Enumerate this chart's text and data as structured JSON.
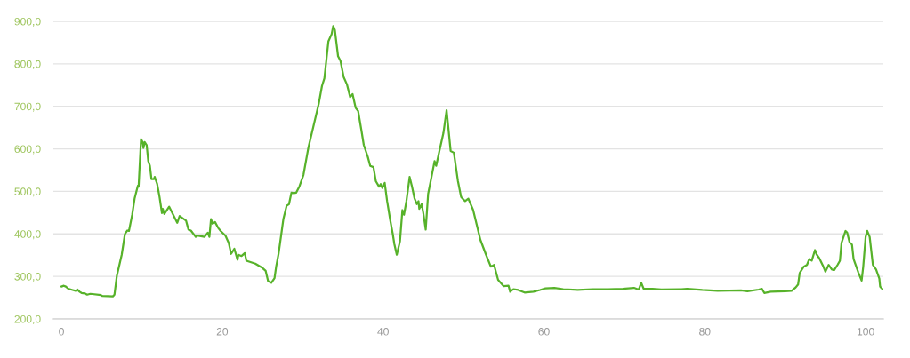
{
  "chart_data": {
    "type": "line",
    "x": [
      0,
      0.3,
      0.55,
      0.85,
      1.4,
      1.77,
      2.0,
      2.25,
      2.5,
      2.9,
      3.2,
      3.6,
      4.9,
      5.1,
      6.4,
      6.6,
      6.9,
      7.5,
      7.9,
      8.2,
      8.4,
      8.8,
      9.1,
      9.5,
      9.6,
      9.9,
      10.1,
      10.2,
      10.35,
      10.6,
      10.8,
      11.0,
      11.2,
      11.5,
      11.6,
      11.9,
      12.2,
      12.5,
      12.6,
      12.8,
      13.4,
      13.9,
      14.4,
      14.7,
      15.0,
      15.5,
      15.8,
      16.1,
      16.7,
      16.9,
      17.8,
      18.2,
      18.4,
      18.6,
      18.8,
      19.1,
      19.5,
      19.8,
      20.4,
      20.8,
      21.1,
      21.5,
      21.9,
      22.0,
      22.4,
      22.8,
      23.0,
      24.1,
      25.0,
      25.4,
      25.7,
      26.1,
      26.5,
      26.7,
      27.0,
      27.6,
      28.0,
      28.3,
      28.6,
      28.9,
      29.2,
      29.6,
      30.1,
      30.7,
      31.4,
      32.0,
      32.4,
      32.7,
      33.2,
      33.6,
      33.8,
      34.0,
      34.4,
      34.7,
      35.1,
      35.5,
      35.9,
      36.2,
      36.6,
      36.9,
      37.3,
      37.6,
      38.1,
      38.4,
      38.8,
      39.1,
      39.5,
      39.7,
      39.9,
      40.2,
      40.5,
      40.9,
      41.2,
      41.4,
      41.7,
      42.1,
      42.4,
      42.6,
      42.9,
      43.3,
      43.6,
      43.9,
      44.2,
      44.4,
      44.5,
      44.8,
      45.0,
      45.3,
      45.6,
      46.0,
      46.4,
      46.6,
      47.0,
      47.5,
      47.9,
      48.4,
      48.8,
      49.3,
      49.7,
      50.2,
      50.6,
      51.2,
      52.1,
      52.8,
      53.4,
      53.8,
      54.3,
      55.0,
      55.6,
      55.8,
      56.2,
      56.8,
      57.6,
      58.7,
      59.5,
      60.2,
      61.3,
      62.4,
      64.2,
      66.1,
      68.0,
      69.8,
      71.2,
      71.8,
      72.1,
      72.4,
      73.5,
      74.6,
      77.1,
      77.8,
      79.7,
      81.6,
      84.5,
      85.3,
      86.7,
      87.1,
      87.4,
      88.2,
      90.0,
      90.8,
      91.3,
      91.6,
      91.8,
      92.3,
      92.7,
      93.0,
      93.3,
      93.7,
      93.9,
      94.2,
      94.7,
      95.0,
      95.4,
      95.8,
      96.1,
      96.5,
      96.8,
      97.0,
      97.5,
      97.7,
      98.0,
      98.3,
      98.5,
      99.1,
      99.5,
      99.7,
      100.0,
      100.2,
      100.5,
      100.9,
      101.3,
      101.7,
      101.8,
      102.1
    ],
    "series": [
      {
        "color": "#57b22a",
        "values": [
          276,
          278,
          276,
          271,
          268,
          266,
          269,
          264,
          261,
          260,
          257,
          259,
          256,
          254,
          253,
          257,
          302,
          351,
          400,
          408,
          407,
          445,
          483,
          513,
          511,
          623,
          616,
          602,
          616,
          609,
          571,
          560,
          529,
          529,
          534,
          518,
          487,
          449,
          459,
          447,
          464,
          445,
          426,
          442,
          438,
          431,
          410,
          408,
          393,
          396,
          393,
          403,
          393,
          435,
          424,
          428,
          414,
          407,
          396,
          379,
          353,
          365,
          339,
          351,
          348,
          355,
          337,
          330,
          320,
          313,
          289,
          285,
          296,
          323,
          353,
          435,
          466,
          470,
          497,
          496,
          497,
          512,
          539,
          602,
          658,
          706,
          748,
          766,
          853,
          870,
          889,
          880,
          818,
          807,
          769,
          752,
          722,
          729,
          696,
          689,
          644,
          609,
          581,
          560,
          557,
          524,
          511,
          517,
          508,
          520,
          477,
          431,
          400,
          376,
          351,
          383,
          456,
          445,
          477,
          534,
          511,
          484,
          470,
          477,
          459,
          470,
          449,
          410,
          494,
          532,
          571,
          560,
          595,
          637,
          691,
          595,
          591,
          525,
          487,
          477,
          483,
          456,
          386,
          351,
          323,
          327,
          292,
          277,
          278,
          264,
          270,
          268,
          262,
          264,
          268,
          272,
          273,
          270,
          268,
          270,
          270,
          271,
          273,
          269,
          285,
          271,
          271,
          269,
          270,
          271,
          268,
          266,
          267,
          265,
          269,
          271,
          261,
          264,
          265,
          266,
          274,
          281,
          308,
          323,
          327,
          341,
          337,
          362,
          352,
          344,
          325,
          311,
          327,
          316,
          315,
          327,
          337,
          379,
          407,
          403,
          380,
          375,
          341,
          309,
          290,
          323,
          393,
          407,
          393,
          327,
          316,
          295,
          276,
          270
        ]
      }
    ],
    "xlim": [
      -1,
      102.2
    ],
    "ylim": [
      200,
      900
    ],
    "xticks": [
      0,
      20,
      40,
      60,
      80,
      100
    ],
    "yticks": [
      {
        "value": 200,
        "label": "200,0"
      },
      {
        "value": 300,
        "label": "300,0"
      },
      {
        "value": 400,
        "label": "400,0"
      },
      {
        "value": 500,
        "label": "500,0"
      },
      {
        "value": 600,
        "label": "600,0"
      },
      {
        "value": 700,
        "label": "700,0"
      },
      {
        "value": 800,
        "label": "800,0"
      },
      {
        "value": 900,
        "label": "900,0"
      }
    ],
    "grid": "y",
    "line_style": "solid"
  }
}
